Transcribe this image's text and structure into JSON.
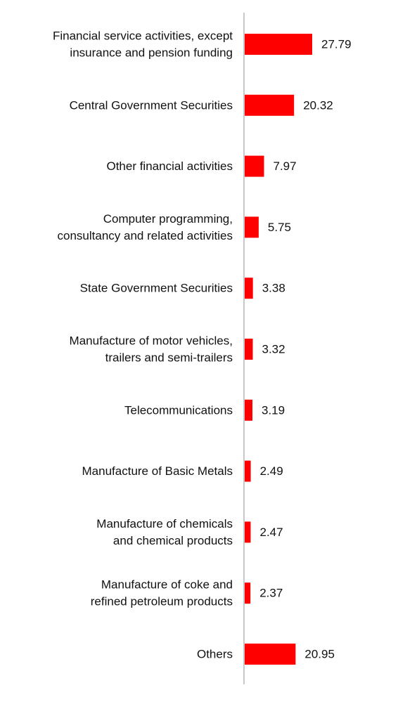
{
  "chart_data": {
    "type": "bar",
    "orientation": "horizontal",
    "categories": [
      [
        "Financial service activities, except",
        "insurance and pension funding"
      ],
      [
        "Central Government Securities"
      ],
      [
        "Other financial activities"
      ],
      [
        "Computer programming,",
        "consultancy and related activities"
      ],
      [
        "State Government Securities"
      ],
      [
        "Manufacture of motor vehicles,",
        "trailers and semi-trailers"
      ],
      [
        "Telecommunications"
      ],
      [
        "Manufacture of Basic Metals"
      ],
      [
        "Manufacture of chemicals",
        "and chemical products"
      ],
      [
        "Manufacture of coke and",
        "refined petroleum products"
      ],
      [
        "Others"
      ]
    ],
    "values": [
      27.79,
      20.32,
      7.97,
      5.75,
      3.38,
      3.32,
      3.19,
      2.49,
      2.47,
      2.37,
      20.95
    ],
    "value_labels": [
      "27.79",
      "20.32",
      "7.97",
      "5.75",
      "3.38",
      "3.32",
      "3.19",
      "2.49",
      "2.47",
      "2.37",
      "20.95"
    ],
    "title": "",
    "xlabel": "",
    "ylabel": "",
    "xlim": [
      0,
      30
    ],
    "grid": false,
    "legend": "none",
    "colors": {
      "bar": "#ff0000",
      "axis": "#c8c8c8",
      "text": "#111111"
    }
  }
}
